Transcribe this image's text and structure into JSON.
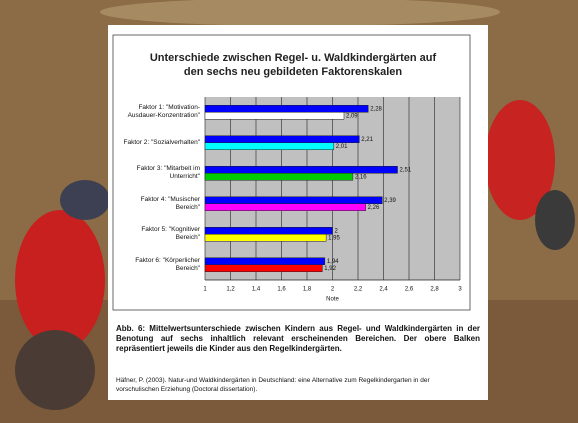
{
  "chart_data": {
    "type": "hbar",
    "title": "Unterschiede zwischen Regel- u. Waldkindergärten auf den sechs neu gebildeten Faktorenskalen",
    "categories": [
      "Faktor 1: \"Motivation-Ausdauer-Konzentration\"",
      "Faktor 2: \"Sozialverhalten\"",
      "Faktor 3: \"Mitarbeit im Unterricht\"",
      "Faktor 4: \"Musischer Bereich\"",
      "Faktor 5: \"Kognitiver Bereich\"",
      "Faktor 6: \"Körperlicher Bereich\""
    ],
    "series": [
      {
        "color": "#0000ff",
        "values": [
          2.28,
          2.21,
          2.51,
          2.39,
          2,
          1.94
        ],
        "value_labels": [
          "2,28",
          "2,21",
          "2,51",
          "2,39",
          "2",
          "1,94"
        ]
      },
      {
        "colors": [
          "#ffffff",
          "#00ffff",
          "#00cc00",
          "#ff00ff",
          "#ffff00",
          "#ff0000"
        ],
        "values": [
          2.09,
          2.01,
          2.16,
          2.26,
          1.95,
          1.92
        ],
        "value_labels": [
          "2,09",
          "2,01",
          "2,16",
          "2,26",
          "1,95",
          "1,92"
        ]
      }
    ],
    "xlabel": "Note",
    "xlim": [
      1,
      3
    ],
    "xticks": [
      1,
      {
        "value": 1.2,
        "label": "1,2"
      },
      {
        "value": 1.4,
        "label": "1,4"
      },
      {
        "value": 1.6,
        "label": "1,6"
      },
      {
        "value": 1.8,
        "label": "1,8"
      },
      2,
      {
        "value": 2.2,
        "label": "2,2"
      },
      {
        "value": 2.4,
        "label": "2,4"
      },
      {
        "value": 2.6,
        "label": "2,6"
      },
      {
        "value": 2.8,
        "label": "2,8"
      },
      3
    ],
    "grid": true
  },
  "caption": "Abb. 6: Mittelwertsunterschiede zwischen Kindern aus Regel- und Waldkindergärten in der Benotung auf sechs inhaltlich relevant erscheinenden Bereichen. Der obere Balken repräsentiert jeweils die Kinder aus den Regelkindergärten.",
  "citation": "Häfner, P. (2003). Natur-und Waldkindergärten in Deutschland: eine Alternative zum Regelkindergarten in der vorschulischen Erziehung (Doctoral dissertation)."
}
